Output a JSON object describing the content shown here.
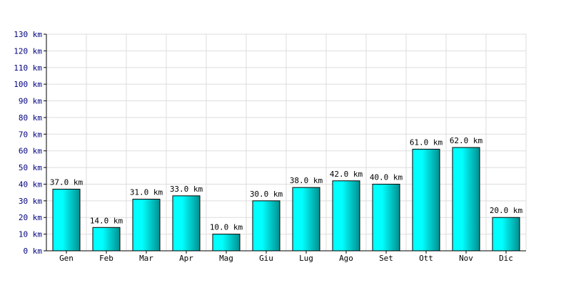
{
  "chart_data": {
    "type": "bar",
    "categories": [
      "Gen",
      "Feb",
      "Mar",
      "Apr",
      "Mag",
      "Giu",
      "Lug",
      "Ago",
      "Set",
      "Ott",
      "Nov",
      "Dic"
    ],
    "values": [
      37,
      14,
      31,
      33,
      10,
      30,
      38,
      42,
      40,
      61,
      62,
      20
    ],
    "data_labels": [
      "37.0 km",
      "14.0 km",
      "31.0 km",
      "33.0 km",
      "10.0 km",
      "30.0 km",
      "38.0 km",
      "42.0 km",
      "40.0 km",
      "61.0 km",
      "62.0 km",
      "20.0 km"
    ],
    "y_ticks": [
      0,
      10,
      20,
      30,
      40,
      50,
      60,
      70,
      80,
      90,
      100,
      110,
      120,
      130
    ],
    "y_tick_labels": [
      "0 km",
      "10 km",
      "20 km",
      "30 km",
      "40 km",
      "50 km",
      "60 km",
      "70 km",
      "80 km",
      "90 km",
      "100 km",
      "110 km",
      "120 km",
      "130 km"
    ],
    "ylim": [
      0,
      130
    ],
    "grid": true,
    "title": "",
    "xlabel": "",
    "ylabel": "",
    "colors": {
      "bar_fill_light": "#00FFFF",
      "bar_fill_dark": "#009090",
      "bar_stroke": "#000000",
      "grid": "#DDDDDD",
      "y_tick_text": "#000080",
      "axis": "#000000"
    }
  }
}
